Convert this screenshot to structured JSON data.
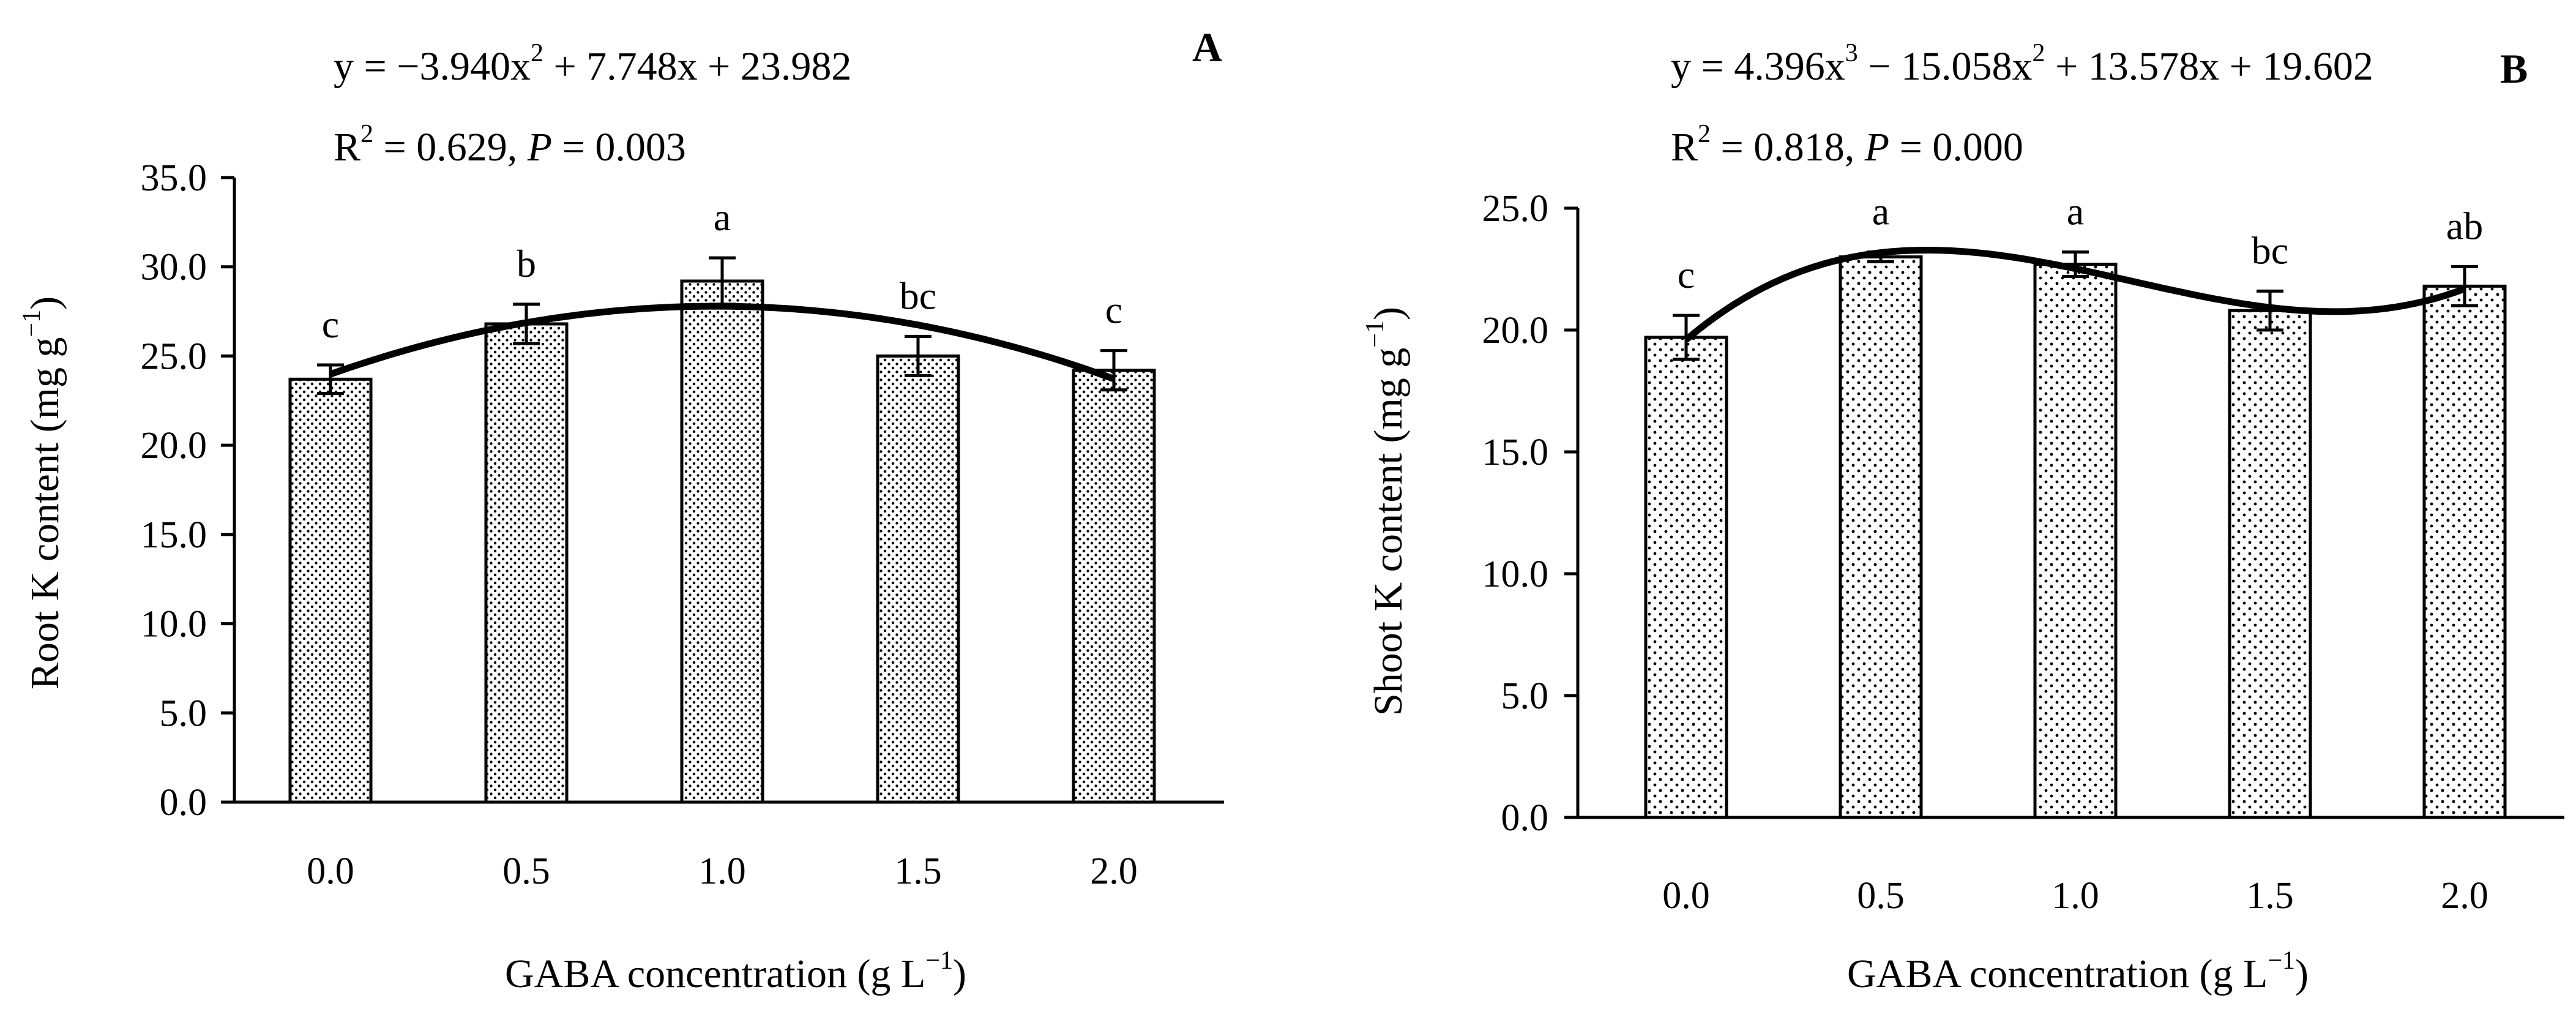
{
  "chart_data": [
    {
      "type": "bar",
      "panel_label": "A",
      "categories": [
        "0.0",
        "0.5",
        "1.0",
        "1.5",
        "2.0"
      ],
      "x": [
        0.0,
        0.5,
        1.0,
        1.5,
        2.0
      ],
      "values": [
        23.7,
        26.8,
        29.2,
        25.0,
        24.2
      ],
      "errors": [
        0.8,
        1.1,
        1.3,
        1.1,
        1.1
      ],
      "letters": [
        "c",
        "b",
        "a",
        "bc",
        "c"
      ],
      "ylim": [
        0,
        35
      ],
      "yticks": [
        "0.0",
        "5.0",
        "10.0",
        "15.0",
        "20.0",
        "25.0",
        "30.0",
        "35.0"
      ],
      "ylabel": {
        "text": "Root K content (mg g",
        "sup": "−1",
        "close": ")"
      },
      "xlabel": {
        "text": "GABA concentration (g L",
        "sup": "−1",
        "close": ")"
      },
      "fit": {
        "kind": "poly",
        "coeffs": [
          23.982,
          7.748,
          -3.94
        ]
      },
      "equation": {
        "y": "y = −3.940x",
        "sup1": "2",
        "rest": " + 7.748x + 23.982"
      },
      "stats": {
        "r": "R",
        "sup": "2",
        "rest": " = 0.629, ",
        "p": "P",
        "prest": " = 0.003"
      }
    },
    {
      "type": "bar",
      "panel_label": "B",
      "categories": [
        "0.0",
        "0.5",
        "1.0",
        "1.5",
        "2.0"
      ],
      "x": [
        0.0,
        0.5,
        1.0,
        1.5,
        2.0
      ],
      "values": [
        19.7,
        23.0,
        22.7,
        20.8,
        21.8
      ],
      "errors": [
        0.9,
        0.2,
        0.5,
        0.8,
        0.8
      ],
      "letters": [
        "c",
        "a",
        "a",
        "bc",
        "ab"
      ],
      "ylim": [
        0,
        25
      ],
      "yticks": [
        "0.0",
        "5.0",
        "10.0",
        "15.0",
        "20.0",
        "25.0"
      ],
      "ylabel": {
        "text": "Shoot K content (mg g",
        "sup": "−1",
        "close": ")"
      },
      "xlabel": {
        "text": "GABA concentration (g L",
        "sup": "−1",
        "close": ")"
      },
      "fit": {
        "kind": "poly",
        "coeffs": [
          19.602,
          13.578,
          -15.058,
          4.396
        ]
      },
      "equation": {
        "y": "y = 4.396x",
        "sup1": "3",
        "mid": " − 15.058x",
        "sup2": "2",
        "rest": " + 13.578x + 19.602"
      },
      "stats": {
        "r": "R",
        "sup": "2",
        "rest": " = 0.818, ",
        "p": "P",
        "prest": " = 0.000"
      }
    }
  ]
}
